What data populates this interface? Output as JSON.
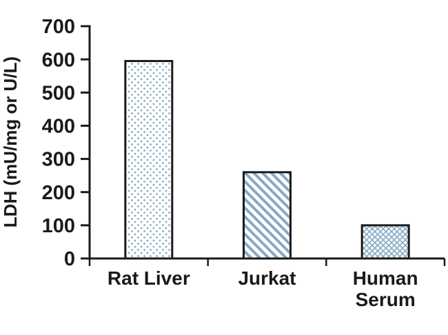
{
  "chart_data": {
    "type": "bar",
    "title": "",
    "ylabel": "LDH (mU/mg or U/L)",
    "xlabel": "",
    "categories": [
      "Rat Liver",
      "Jurkat",
      "Human Serum"
    ],
    "category_lines": [
      [
        "Rat Liver"
      ],
      [
        "Jurkat"
      ],
      [
        "Human",
        "Serum"
      ]
    ],
    "values": [
      595,
      260,
      100
    ],
    "ylim": [
      0,
      700
    ],
    "ytick_step": 100,
    "yticks": [
      0,
      100,
      200,
      300,
      400,
      500,
      600,
      700
    ],
    "bar_patterns": [
      "dots",
      "diagonal",
      "crosshatch"
    ],
    "legend": "none",
    "grid": false,
    "colors": {
      "pattern": "#86a9c2",
      "outline": "#1a1a1a",
      "axis": "#1a1a1a",
      "text": "#1a1a1a",
      "background": "#ffffff"
    }
  }
}
